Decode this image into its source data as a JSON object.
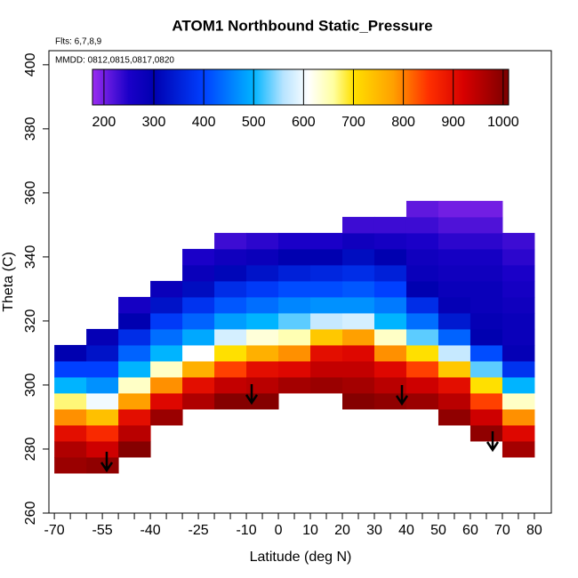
{
  "chart_data": {
    "type": "heatmap",
    "title": "ATOM1 Northbound Static_Pressure",
    "subtitle": "Flts: 6,7,8,9",
    "annotation": "MMDD: 0812,0815,0817,0820",
    "xlabel": "Latitude (deg N)",
    "ylabel": "Theta (C)",
    "xlim": [
      -71.7,
      85.3
    ],
    "ylim": [
      260,
      404.4
    ],
    "xticks": [
      -70,
      -55,
      -40,
      -25,
      -10,
      0,
      10,
      20,
      30,
      40,
      50,
      60,
      70,
      80
    ],
    "xminorticks": [
      -65,
      -60,
      -50,
      -45,
      -35,
      -30,
      -20,
      -15,
      -5,
      5,
      15,
      25,
      35,
      45,
      55,
      65,
      75
    ],
    "yticks": [
      260,
      280,
      300,
      320,
      340,
      360,
      380,
      400
    ],
    "x": [
      -65,
      -55,
      -45,
      -35,
      -25,
      -15,
      -5,
      5,
      15,
      25,
      35,
      45,
      55,
      65,
      75
    ],
    "y": [
      275,
      280,
      285,
      290,
      295,
      300,
      305,
      310,
      315,
      320,
      325,
      330,
      335,
      340,
      345,
      350,
      355
    ],
    "x_cell_width": 10,
    "y_cell_height": 5,
    "z": [
      [
        980,
        960,
        900,
        790,
        670,
        500,
        400,
        300,
        null,
        null,
        null,
        null,
        null,
        null,
        null,
        null,
        null
      ],
      [
        990,
        930,
        860,
        740,
        600,
        470,
        400,
        330,
        290,
        null,
        null,
        null,
        null,
        null,
        null,
        null,
        null
      ],
      [
        null,
        1000,
        950,
        900,
        780,
        640,
        500,
        430,
        370,
        300,
        260,
        null,
        null,
        null,
        null,
        null,
        null
      ],
      [
        null,
        null,
        null,
        980,
        910,
        790,
        640,
        500,
        440,
        390,
        330,
        280,
        null,
        null,
        null,
        null,
        null
      ],
      [
        null,
        null,
        null,
        null,
        960,
        900,
        760,
        610,
        490,
        430,
        380,
        320,
        280,
        250,
        null,
        null,
        null
      ],
      [
        null,
        null,
        null,
        null,
        1000,
        940,
        840,
        700,
        580,
        480,
        420,
        370,
        310,
        270,
        230,
        null,
        null
      ],
      [
        null,
        null,
        null,
        null,
        1000,
        950,
        900,
        760,
        630,
        500,
        440,
        390,
        330,
        280,
        240,
        null,
        null
      ],
      [
        null,
        null,
        null,
        null,
        null,
        970,
        910,
        790,
        650,
        530,
        460,
        410,
        350,
        300,
        250,
        null,
        null
      ],
      [
        null,
        null,
        null,
        null,
        null,
        980,
        940,
        900,
        730,
        570,
        470,
        410,
        360,
        300,
        250,
        null,
        null
      ],
      [
        null,
        null,
        null,
        null,
        1000,
        970,
        940,
        910,
        780,
        580,
        470,
        420,
        370,
        320,
        270,
        230,
        null
      ],
      [
        null,
        null,
        null,
        null,
        990,
        950,
        910,
        790,
        640,
        500,
        450,
        400,
        350,
        300,
        260,
        230,
        null
      ],
      [
        null,
        null,
        null,
        null,
        980,
        930,
        840,
        700,
        530,
        440,
        370,
        300,
        280,
        270,
        250,
        230,
        210
      ],
      [
        null,
        null,
        null,
        990,
        950,
        900,
        730,
        570,
        430,
        340,
        290,
        280,
        270,
        260,
        240,
        220,
        200
      ],
      [
        null,
        null,
        990,
        930,
        840,
        700,
        530,
        410,
        300,
        290,
        280,
        280,
        270,
        260,
        240,
        220,
        200
      ],
      [
        null,
        970,
        910,
        790,
        640,
        500,
        380,
        290,
        280,
        280,
        270,
        260,
        250,
        240,
        230,
        null,
        null
      ]
    ],
    "clim": [
      177,
      1011
    ],
    "cticks": [
      200,
      300,
      400,
      500,
      600,
      700,
      800,
      900,
      1000
    ],
    "colorscale": [
      [
        177,
        "#9a2cf0"
      ],
      [
        250,
        "#1a00c8"
      ],
      [
        300,
        "#0000b0"
      ],
      [
        400,
        "#0040ff"
      ],
      [
        500,
        "#00b4ff"
      ],
      [
        560,
        "#b8e4ff"
      ],
      [
        610,
        "#ffffff"
      ],
      [
        660,
        "#ffffa0"
      ],
      [
        700,
        "#ffe000"
      ],
      [
        780,
        "#ffa000"
      ],
      [
        850,
        "#ff3000"
      ],
      [
        920,
        "#d80000"
      ],
      [
        1011,
        "#7a0000"
      ]
    ]
  }
}
